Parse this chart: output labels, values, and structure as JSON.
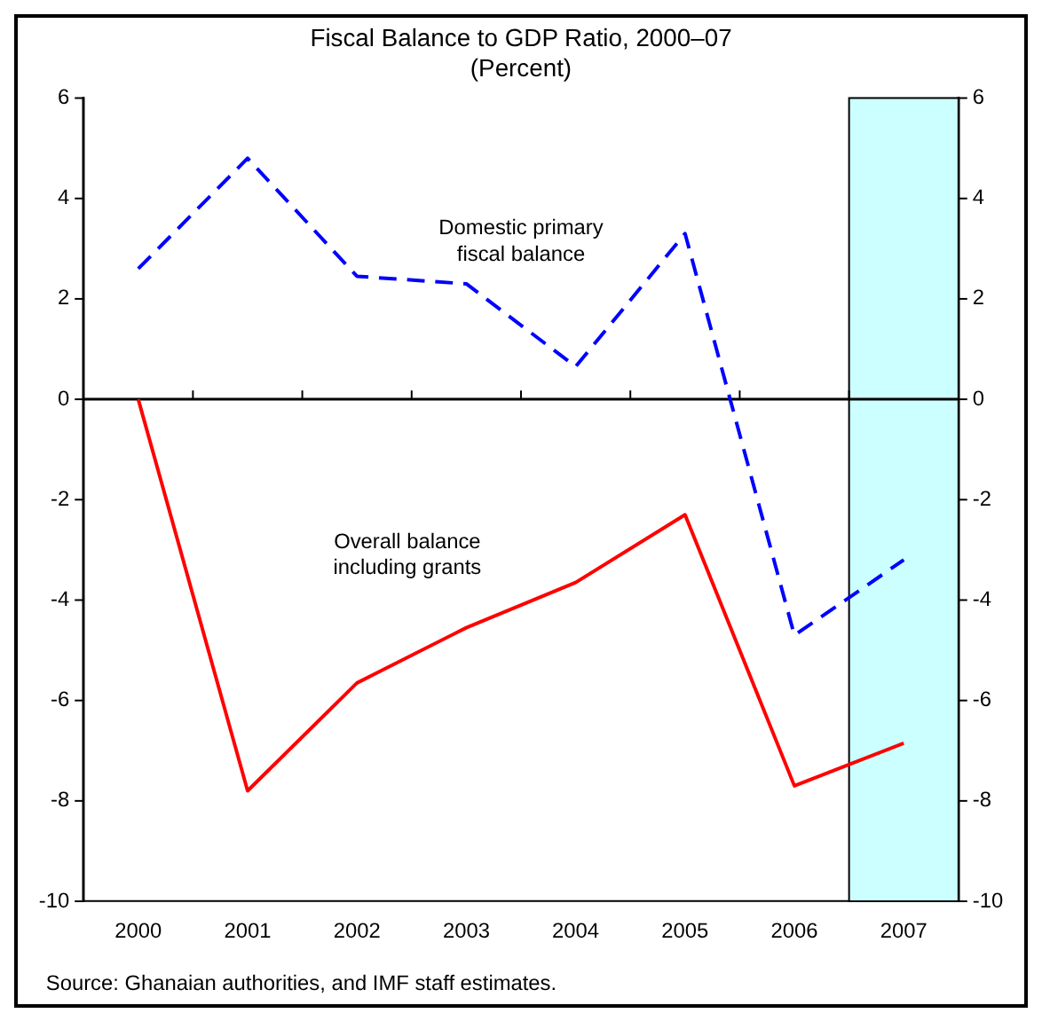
{
  "chart_data": {
    "type": "line",
    "title": "Fiscal Balance to GDP Ratio, 2000–07",
    "subtitle": "(Percent)",
    "categories": [
      "2000",
      "2001",
      "2002",
      "2003",
      "2004",
      "2005",
      "2006",
      "2007"
    ],
    "series": [
      {
        "name": "Domestic primary fiscal balance",
        "color": "#0000ff",
        "line_style": "dashed",
        "values": [
          2.6,
          4.8,
          2.45,
          2.3,
          0.65,
          3.3,
          -4.7,
          -3.2
        ]
      },
      {
        "name": "Overall balance including grants",
        "color": "#ff0000",
        "line_style": "solid",
        "values": [
          0,
          -7.8,
          -5.65,
          -4.55,
          -3.65,
          -2.3,
          -7.7,
          -6.85
        ]
      }
    ],
    "ylim": [
      -10,
      6
    ],
    "yticks": [
      -10,
      -8,
      -6,
      -4,
      -2,
      0,
      2,
      4,
      6
    ],
    "y2lim": [
      -10,
      6
    ],
    "y2ticks": [
      -10,
      -8,
      -6,
      -4,
      -2,
      0,
      2,
      4,
      6
    ],
    "ref_lines": [
      {
        "axis": "y",
        "value": 0,
        "color": "#000000",
        "line_style": "solid"
      }
    ],
    "bands": [
      {
        "axis": "x",
        "from": "2007",
        "to": "2007",
        "color": "#ccffff"
      }
    ],
    "annotations": [
      "Source: Ghanaian authorities, and IMF staff estimates."
    ],
    "grid": false,
    "legend": false,
    "marker": "none"
  }
}
